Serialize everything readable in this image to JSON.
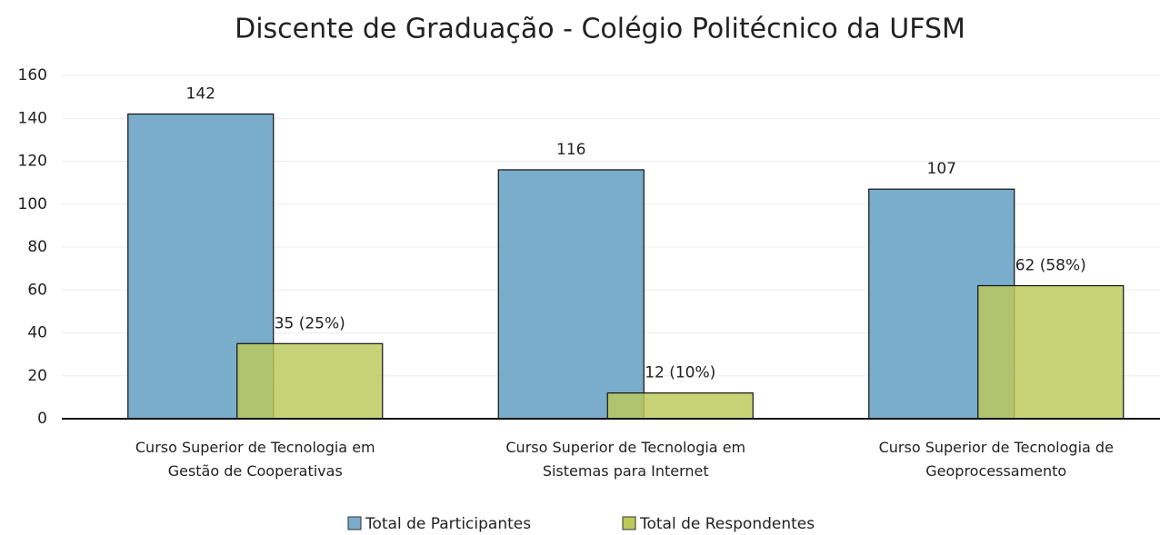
{
  "chart_data": {
    "type": "bar",
    "title": "Discente de Graduação - Colégio Politécnico da UFSM",
    "categories": [
      "Curso Superior de Tecnologia em\nGestão de Cooperativas",
      "Curso Superior de Tecnologia em\nSistemas para Internet",
      "Curso Superior de Tecnologia de\nGeoprocessamento"
    ],
    "series": [
      {
        "name": "Total de Participantes",
        "color": "#7aaccb",
        "values": [
          142,
          116,
          107
        ]
      },
      {
        "name": "Total de Respondentes",
        "color": "#bcc95a",
        "values": [
          35,
          12,
          62
        ],
        "value_labels": [
          "35 (25%)",
          "12 (10%)",
          "62 (58%)"
        ]
      }
    ],
    "ylim": [
      0,
      160
    ],
    "yticks": [
      0,
      20,
      40,
      60,
      80,
      100,
      120,
      140,
      160
    ],
    "grid": true,
    "legend": "bottom"
  }
}
